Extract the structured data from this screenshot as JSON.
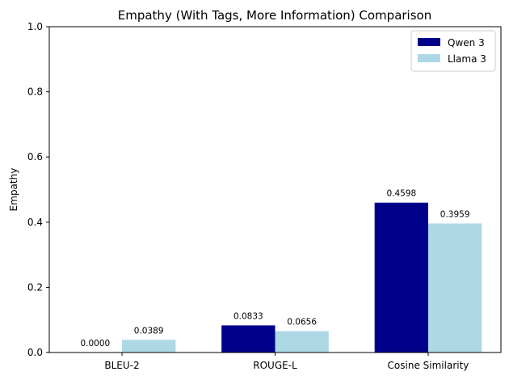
{
  "chart_data": {
    "type": "bar",
    "title": "Empathy (With Tags, More Information) Comparison",
    "xlabel": "",
    "ylabel": "Empathy",
    "categories": [
      "BLEU-2",
      "ROUGE-L",
      "Cosine Similarity"
    ],
    "series": [
      {
        "name": "Qwen 3",
        "values": [
          0.0,
          0.0833,
          0.4598
        ],
        "labels": [
          "0.0000",
          "0.0833",
          "0.4598"
        ],
        "color": "#00008b"
      },
      {
        "name": "Llama 3",
        "values": [
          0.0389,
          0.0656,
          0.3959
        ],
        "labels": [
          "0.0389",
          "0.0656",
          "0.3959"
        ],
        "color": "#add8e6"
      }
    ],
    "ylim": [
      0,
      1.0
    ],
    "yticks": [
      "0.0",
      "0.2",
      "0.4",
      "0.6",
      "0.8",
      "1.0"
    ],
    "grid": false,
    "legend": "top-right"
  }
}
